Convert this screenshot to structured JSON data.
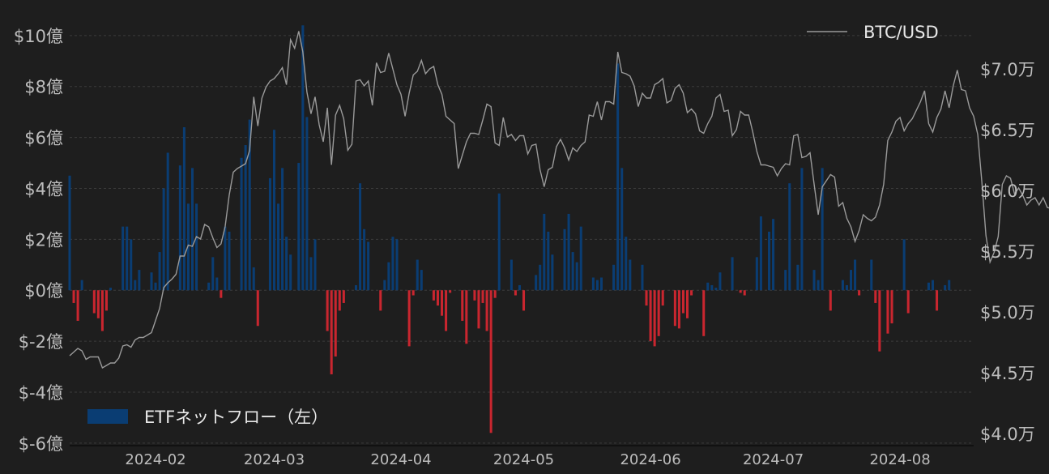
{
  "chart_data": {
    "type": "bar+line",
    "title": "",
    "x_ticks": [
      "2024-02",
      "2024-03",
      "2024-04",
      "2024-05",
      "2024-06",
      "2024-07",
      "2024-08"
    ],
    "x_range": [
      "2024-01-11",
      "2024-08-19"
    ],
    "left_axis": {
      "ylim": [
        -6.1,
        10.6
      ],
      "ticks": [
        -6,
        -4,
        -2,
        0,
        2,
        4,
        6,
        8,
        10
      ],
      "tick_labels": [
        "$-6億",
        "$-4億",
        "$-2億",
        "$0億",
        "$2億",
        "$4億",
        "$6億",
        "$8億",
        "$10億"
      ]
    },
    "right_axis": {
      "ylim": [
        39000,
        74000
      ],
      "ticks": [
        40000,
        45000,
        50000,
        55000,
        60000,
        65000,
        70000
      ],
      "tick_labels": [
        "$4.0万",
        "$4.5万",
        "$5.0万",
        "$5.5万",
        "$6.0万",
        "$6.5万",
        "$7.0万"
      ]
    },
    "grid": true,
    "series": [
      {
        "name": "ETFネットフロー（左）",
        "type": "bar",
        "axis": "left",
        "color_positive": "#0a3d73",
        "color_negative": "#c9262f",
        "start_date": "2024-01-11",
        "values": [
          4.5,
          -0.5,
          -1.2,
          0.4,
          0,
          0,
          -0.9,
          -1.1,
          -1.6,
          -0.8,
          0.1,
          0,
          0,
          2.5,
          2.5,
          2.0,
          0.4,
          0.8,
          0,
          0,
          0.7,
          0.3,
          1.5,
          4.0,
          5.4,
          0,
          0,
          4.9,
          6.4,
          3.4,
          4.8,
          3.4,
          0,
          0,
          0.3,
          1.3,
          0.5,
          -0.3,
          2.5,
          2.3,
          0,
          0,
          5.2,
          5.7,
          6.7,
          0.9,
          -1.4,
          0,
          0,
          4.4,
          6.3,
          3.4,
          4.8,
          2.1,
          1.4,
          0,
          5.0,
          10.4,
          6.8,
          1.3,
          2.0,
          0,
          0,
          -1.6,
          -3.3,
          -2.6,
          -0.8,
          -0.5,
          0,
          0,
          0.2,
          4.2,
          2.4,
          1.9,
          0,
          0,
          -0.8,
          0.4,
          1.1,
          2.1,
          2.0,
          0,
          0,
          -2.2,
          -0.2,
          1.2,
          0.8,
          0,
          0,
          -0.4,
          -0.6,
          -1.0,
          -1.6,
          -0.1,
          0,
          0,
          -1.2,
          -2.1,
          0,
          -0.4,
          -1.5,
          -0.5,
          -1.6,
          -5.6,
          -0.3,
          3.8,
          0,
          0,
          1.2,
          -0.2,
          0.2,
          -0.8,
          0,
          0,
          0.6,
          1.0,
          3.0,
          2.3,
          1.4,
          0,
          0,
          2.4,
          3.0,
          1.5,
          1.1,
          2.5,
          0,
          0,
          0.5,
          0.4,
          0.5,
          0,
          0,
          1.0,
          8.9,
          4.8,
          2.1,
          1.2,
          0,
          0,
          1.0,
          -0.6,
          -2.0,
          -2.2,
          -1.8,
          -0.6,
          0,
          0,
          -1.4,
          -1.5,
          -0.9,
          -1.1,
          -0.2,
          0,
          0,
          -1.8,
          0.3,
          0.2,
          0.1,
          0.7,
          0,
          0,
          1.3,
          0,
          -0.1,
          -0.2,
          0,
          0,
          1.3,
          2.9,
          0,
          2.3,
          2.8,
          0,
          0,
          0.8,
          4.2,
          0,
          1.0,
          4.8,
          0,
          0,
          0.8,
          0.4,
          4.8,
          0,
          -0.8,
          0,
          0,
          0.4,
          0.2,
          0.8,
          1.2,
          -0.2,
          0,
          0,
          1.2,
          -0.5,
          -2.4,
          0,
          -1.7,
          -1.3,
          0,
          0,
          2.0,
          -0.9,
          0,
          0,
          0,
          0,
          0.3,
          0.4,
          -0.8,
          0,
          0.2,
          0.4,
          0
        ]
      },
      {
        "name": "BTC/USD",
        "type": "line",
        "axis": "right",
        "color": "#9a9a9a",
        "start_date": "2024-01-11",
        "values": [
          46400,
          46700,
          47000,
          46800,
          46100,
          46300,
          46300,
          46300,
          45400,
          45600,
          45800,
          45800,
          46200,
          47200,
          47300,
          47100,
          47700,
          47900,
          47900,
          48100,
          48300,
          49300,
          50300,
          52000,
          52400,
          52700,
          53100,
          54600,
          54600,
          55500,
          55400,
          56200,
          56000,
          57200,
          57000,
          56100,
          55300,
          55600,
          57000,
          59600,
          61500,
          61800,
          62000,
          62200,
          63300,
          67700,
          65300,
          67600,
          68500,
          69000,
          69200,
          69600,
          70100,
          68700,
          72400,
          71700,
          73100,
          71400,
          68100,
          66300,
          67700,
          65400,
          64000,
          66800,
          62100,
          66200,
          67000,
          65900,
          63300,
          63800,
          69000,
          69100,
          68600,
          69000,
          67000,
          70500,
          69700,
          69800,
          71300,
          70000,
          68700,
          67900,
          66100,
          68000,
          69500,
          69800,
          70700,
          69600,
          70000,
          70200,
          68700,
          67900,
          66100,
          65800,
          65500,
          61800,
          62900,
          64000,
          64700,
          64700,
          64600,
          65800,
          67100,
          66900,
          63900,
          63700,
          66000,
          64400,
          64600,
          64100,
          64500,
          64500,
          63000,
          63700,
          63800,
          61700,
          60300,
          61700,
          61900,
          63600,
          64200,
          63500,
          62500,
          63500,
          63200,
          63700,
          64000,
          66200,
          66100,
          67300,
          65800,
          67300,
          67300,
          67100,
          71400,
          69700,
          69600,
          69400,
          68600,
          66900,
          68000,
          67600,
          67600,
          68700,
          68900,
          69200,
          67200,
          67400,
          68400,
          68700,
          68000,
          66400,
          66700,
          66300,
          64900,
          64700,
          65500,
          66100,
          67600,
          67900,
          66500,
          66600,
          64500,
          65000,
          66500,
          66200,
          66200,
          64800,
          63200,
          62100,
          62100,
          62000,
          61900,
          61200,
          61800,
          62200,
          62100,
          64500,
          64600,
          62700,
          62800,
          63100,
          60500,
          58000,
          60300,
          60800,
          61300,
          61100,
          58700,
          59000,
          57700,
          57000,
          55800,
          56700,
          58000,
          57700,
          57500,
          57800,
          58800,
          60500,
          64100,
          64800,
          65700,
          66000,
          64900,
          65500,
          65900,
          66600,
          67300,
          68200,
          65500,
          64800,
          66000,
          66700,
          68200,
          66800,
          68600,
          69900,
          68300,
          68200,
          66800,
          66100,
          64600,
          60700,
          56300,
          54100,
          54900,
          56200,
          60500,
          61200,
          61000,
          59700,
          60200,
          59600,
          58800,
          59200,
          59400,
          58800,
          59400,
          58600,
          58500,
          59500,
          58600,
          58600
        ]
      }
    ],
    "legend": [
      {
        "label": "BTC/USD",
        "kind": "line",
        "placement": "top-right"
      },
      {
        "label": "ETFネットフロー（左）",
        "kind": "bar",
        "placement": "bottom-left"
      }
    ]
  }
}
